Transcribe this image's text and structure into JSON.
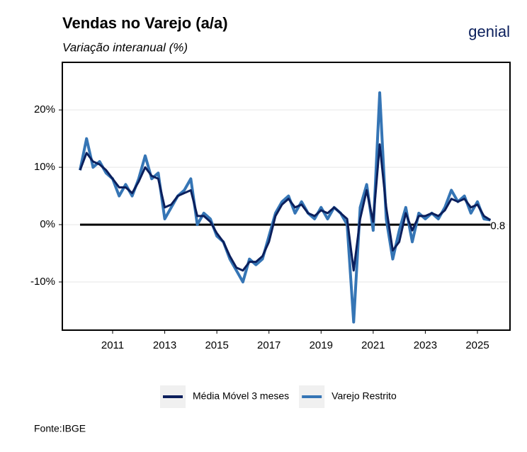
{
  "chart_data": {
    "type": "line",
    "title": "Vendas no Varejo (a/a)",
    "subtitle": "Variação interanual (%)",
    "brand": "genial",
    "source": "Fonte:IBGE",
    "annotation": "0.8",
    "x": [
      2009.75,
      2010,
      2010.25,
      2010.5,
      2010.75,
      2011,
      2011.25,
      2011.5,
      2011.75,
      2012,
      2012.25,
      2012.5,
      2012.75,
      2013,
      2013.25,
      2013.5,
      2013.75,
      2014,
      2014.25,
      2014.5,
      2014.75,
      2015,
      2015.25,
      2015.5,
      2015.75,
      2016,
      2016.25,
      2016.5,
      2016.75,
      2017,
      2017.25,
      2017.5,
      2017.75,
      2018,
      2018.25,
      2018.5,
      2018.75,
      2019,
      2019.25,
      2019.5,
      2019.75,
      2020,
      2020.25,
      2020.5,
      2020.75,
      2021,
      2021.25,
      2021.5,
      2021.75,
      2022,
      2022.25,
      2022.5,
      2022.75,
      2023,
      2023.25,
      2023.5,
      2023.75,
      2024,
      2024.25,
      2024.5,
      2024.75,
      2025,
      2025.25,
      2025.5
    ],
    "series": [
      {
        "name": "Varejo Restrito",
        "color": "#3575b5",
        "values": [
          9.5,
          15,
          10,
          11,
          9,
          8,
          5,
          7,
          5,
          8,
          12,
          8,
          9,
          1,
          3,
          5,
          6,
          8,
          0,
          2,
          1,
          -2,
          -3,
          -6,
          -8,
          -10,
          -6,
          -7,
          -6,
          -2,
          2,
          4,
          5,
          2,
          4,
          2,
          1,
          3,
          1,
          3,
          2,
          0,
          -17,
          3,
          7,
          -1,
          23,
          1,
          -6,
          -1,
          3,
          -3,
          2,
          1,
          2,
          1,
          3,
          6,
          4,
          5,
          2,
          4,
          1,
          0.8
        ]
      },
      {
        "name": "Média Móvel 3 meses",
        "color": "#0b1f5c",
        "values": [
          9.5,
          12.5,
          11,
          10.5,
          9.5,
          8,
          6.5,
          6.5,
          5.5,
          7.5,
          10,
          8.5,
          8,
          3,
          3.5,
          5,
          5.5,
          6,
          1.5,
          1.5,
          0.5,
          -1.5,
          -3,
          -5.5,
          -7.5,
          -8,
          -6.5,
          -6.5,
          -5.5,
          -3,
          1.5,
          3.5,
          4.5,
          3,
          3.5,
          2,
          1.5,
          2.5,
          2,
          3,
          2,
          1,
          -8,
          1,
          6,
          0.5,
          14,
          3,
          -4.5,
          -3,
          2,
          -1,
          1.5,
          1.5,
          2,
          1.5,
          2.5,
          4.5,
          4,
          4.5,
          3,
          3.5,
          1.5,
          0.8
        ]
      }
    ],
    "xlim": [
      2009.07,
      2026.25
    ],
    "xticks": [
      2011,
      2013,
      2015,
      2017,
      2019,
      2021,
      2023,
      2025
    ],
    "ylim": [
      -18.4,
      28.3
    ],
    "yticks": [
      {
        "value": -10,
        "label": "-10%"
      },
      {
        "value": 0,
        "label": "0%"
      },
      {
        "value": 10,
        "label": "10%"
      },
      {
        "value": 20,
        "label": "20%"
      }
    ],
    "grid": true,
    "legend": "bottom"
  }
}
